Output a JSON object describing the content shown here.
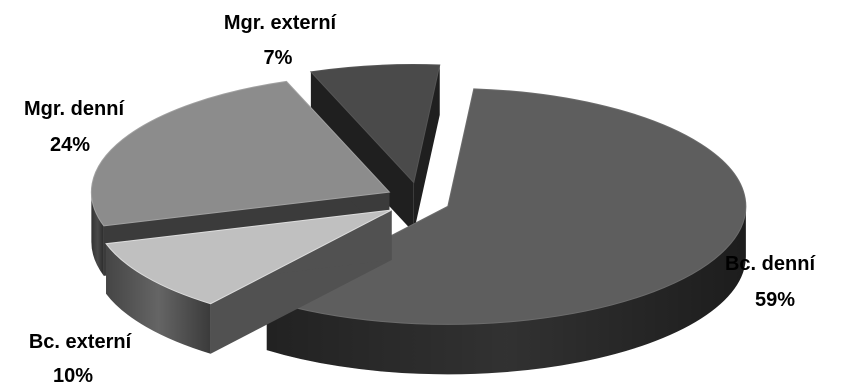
{
  "chart_data": {
    "type": "pie",
    "style": "3d-exploded",
    "slices": [
      {
        "label": "Bc. denní",
        "value": 59,
        "value_label": "59%",
        "color": "#5e5e5e"
      },
      {
        "label": "Bc. externí",
        "value": 10,
        "value_label": "10%",
        "color": "#c0c0c0"
      },
      {
        "label": "Mgr. denní",
        "value": 24,
        "value_label": "24%",
        "color": "#8c8c8c"
      },
      {
        "label": "Mgr. externí",
        "value": 7,
        "value_label": "7%",
        "color": "#4a4a4a"
      }
    ],
    "legend": "none",
    "labels": "outside"
  }
}
